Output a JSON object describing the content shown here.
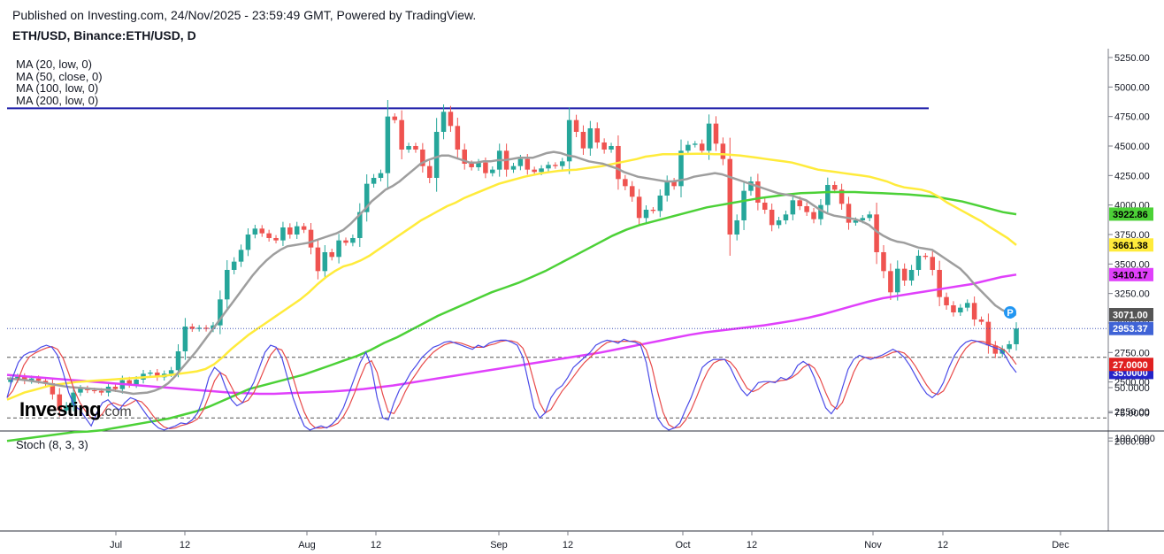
{
  "header": {
    "publish_line": "Published on Investing.com, 24/Nov/2025 - 23:59:49 GMT, Powered by TradingView.",
    "symbol_line": "ETH/USD, Binance:ETH/USD, D"
  },
  "logo": {
    "text": "Investing",
    "suffix": ".com"
  },
  "colors": {
    "up": "#26a69a",
    "down": "#ef5350",
    "ma20": "#9e9e9e",
    "ma50": "#ffeb3b",
    "ma100": "#4cd137",
    "ma200": "#e040fb",
    "resistance": "#1a1aa8",
    "stoch_k": "#4a4ae8",
    "stoch_d": "#e84a4a",
    "stoch_band": "#d9b8dd"
  },
  "chart_data": [
    {
      "type": "candlestick",
      "title": "ETH/USD, Binance:ETH/USD, D",
      "x_ticks": [
        "Jul",
        "12",
        "Aug",
        "12",
        "Sep",
        "12",
        "Oct",
        "12",
        "Nov",
        "12",
        "Dec"
      ],
      "y_ticks": [
        "5250.00",
        "5000.00",
        "4750.00",
        "4500.00",
        "4250.00",
        "4000.00",
        "3750.00",
        "3500.00",
        "3250.00",
        "3000.00",
        "2750.00",
        "2500.00",
        "2250.00",
        "2000.00"
      ],
      "ylim": [
        1900,
        5340
      ],
      "resistance_level": 4820,
      "current_price": 2953.37,
      "legend": [
        "MA (20, low, 0)",
        "MA (50, close, 0)",
        "MA (100, low, 0)",
        "MA (200, low, 0)"
      ],
      "closes": [
        2520,
        2545,
        2510,
        2530,
        2510,
        2490,
        2395,
        2260,
        2300,
        2410,
        2445,
        2430,
        2425,
        2410,
        2460,
        2440,
        2515,
        2480,
        2520,
        2570,
        2580,
        2540,
        2570,
        2600,
        2760,
        2970,
        2950,
        2960,
        2950,
        2980,
        3200,
        3450,
        3520,
        3620,
        3750,
        3800,
        3760,
        3720,
        3700,
        3810,
        3750,
        3820,
        3790,
        3640,
        3440,
        3600,
        3560,
        3700,
        3680,
        3720,
        3940,
        4180,
        4230,
        4270,
        4750,
        4720,
        4470,
        4500,
        4470,
        4330,
        4230,
        4620,
        4790,
        4670,
        4470,
        4350,
        4320,
        4360,
        4270,
        4300,
        4460,
        4300,
        4330,
        4390,
        4300,
        4280,
        4310,
        4340,
        4330,
        4370,
        4720,
        4620,
        4480,
        4650,
        4530,
        4470,
        4500,
        4220,
        4160,
        4070,
        3890,
        3960,
        3950,
        4080,
        4200,
        4160,
        4460,
        4510,
        4520,
        4460,
        4690,
        4520,
        4390,
        3750,
        3870,
        4120,
        4200,
        4020,
        3960,
        3830,
        3870,
        3920,
        4040,
        3990,
        3940,
        3880,
        4000,
        4170,
        4130,
        4010,
        3850,
        3870,
        3890,
        3920,
        3600,
        3440,
        3260,
        3460,
        3360,
        3450,
        3570,
        3560,
        3450,
        3220,
        3150,
        3090,
        3130,
        3170,
        3030,
        3010,
        2810,
        2740,
        2780,
        2820,
        2953
      ],
      "ma20": [
        2530,
        2525,
        2520,
        2513,
        2504,
        2495,
        2485,
        2475,
        2465,
        2456,
        2452,
        2448,
        2443,
        2439,
        2435,
        2430,
        2420,
        2410,
        2400,
        2405,
        2410,
        2425,
        2450,
        2490,
        2550,
        2620,
        2690,
        2760,
        2840,
        2920,
        3000,
        3080,
        3160,
        3240,
        3320,
        3400,
        3470,
        3530,
        3580,
        3620,
        3650,
        3660,
        3670,
        3680,
        3700,
        3720,
        3740,
        3760,
        3790,
        3840,
        3900,
        3960,
        4030,
        4080,
        4130,
        4160,
        4200,
        4250,
        4300,
        4350,
        4380,
        4400,
        4420,
        4420,
        4400,
        4380,
        4360,
        4360,
        4370,
        4370,
        4380,
        4380,
        4390,
        4400,
        4400,
        4400,
        4420,
        4440,
        4450,
        4440,
        4420,
        4410,
        4390,
        4370,
        4360,
        4350,
        4330,
        4310,
        4280,
        4260,
        4240,
        4230,
        4220,
        4210,
        4200,
        4200,
        4210,
        4220,
        4240,
        4250,
        4260,
        4270,
        4260,
        4240,
        4220,
        4200,
        4180,
        4160,
        4140,
        4120,
        4100,
        4090,
        4080,
        4060,
        4040,
        4000,
        3960,
        3930,
        3910,
        3900,
        3890,
        3880,
        3860,
        3830,
        3780,
        3740,
        3710,
        3690,
        3680,
        3660,
        3640,
        3630,
        3620,
        3580,
        3540,
        3500,
        3460,
        3400,
        3330,
        3270,
        3210,
        3150,
        3110,
        3080,
        3071
      ],
      "ma50": [
        2350,
        2380,
        2410,
        2430,
        2450,
        2470,
        2480,
        2490,
        2500,
        2505,
        2510,
        2515,
        2520,
        2525,
        2530,
        2535,
        2540,
        2545,
        2550,
        2560,
        2570,
        2580,
        2590,
        2610,
        2650,
        2710,
        2780,
        2840,
        2900,
        2950,
        3000,
        3050,
        3100,
        3150,
        3200,
        3260,
        3330,
        3390,
        3440,
        3480,
        3500,
        3530,
        3570,
        3620,
        3670,
        3720,
        3770,
        3820,
        3870,
        3910,
        3950,
        3990,
        4020,
        4060,
        4090,
        4120,
        4150,
        4180,
        4200,
        4220,
        4240,
        4255,
        4270,
        4280,
        4290,
        4295,
        4300,
        4310,
        4320,
        4330,
        4345,
        4360,
        4375,
        4390,
        4410,
        4420,
        4430,
        4430,
        4432,
        4433,
        4435,
        4435,
        4430,
        4430,
        4425,
        4420,
        4410,
        4400,
        4390,
        4380,
        4370,
        4360,
        4340,
        4320,
        4300,
        4290,
        4280,
        4270,
        4260,
        4250,
        4240,
        4220,
        4200,
        4170,
        4150,
        4140,
        4130,
        4110,
        4070,
        4020,
        3980,
        3940,
        3900,
        3860,
        3810,
        3765,
        3720,
        3661
      ],
      "ma100": [
        2000,
        2015,
        2030,
        2045,
        2060,
        2075,
        2080,
        2090,
        2110,
        2130,
        2150,
        2170,
        2190,
        2220,
        2250,
        2290,
        2340,
        2390,
        2440,
        2470,
        2500,
        2530,
        2560,
        2600,
        2640,
        2680,
        2720,
        2770,
        2830,
        2880,
        2940,
        3000,
        3060,
        3110,
        3160,
        3210,
        3260,
        3300,
        3340,
        3390,
        3440,
        3500,
        3560,
        3620,
        3680,
        3740,
        3790,
        3830,
        3860,
        3890,
        3920,
        3950,
        3980,
        4000,
        4020,
        4040,
        4060,
        4075,
        4090,
        4100,
        4105,
        4110,
        4110,
        4110,
        4105,
        4100,
        4095,
        4090,
        4080,
        4070,
        4050,
        4030,
        4000,
        3970,
        3940,
        3922
      ],
      "ma200": [
        2560,
        2550,
        2540,
        2530,
        2520,
        2510,
        2500,
        2490,
        2480,
        2470,
        2460,
        2450,
        2440,
        2430,
        2420,
        2410,
        2405,
        2400,
        2400,
        2405,
        2410,
        2415,
        2420,
        2430,
        2440,
        2455,
        2470,
        2490,
        2510,
        2530,
        2550,
        2570,
        2590,
        2610,
        2630,
        2650,
        2670,
        2690,
        2710,
        2730,
        2750,
        2775,
        2800,
        2825,
        2850,
        2875,
        2900,
        2920,
        2935,
        2950,
        2965,
        2980,
        3000,
        3020,
        3045,
        3075,
        3110,
        3145,
        3180,
        3210,
        3230,
        3250,
        3270,
        3290,
        3310,
        3330,
        3360,
        3390,
        3410
      ],
      "series_labels": {
        "ma20": "3071.00",
        "ma50": "3661.38",
        "ma100": "3922.86",
        "ma200": "3410.17",
        "price": "2953.37"
      },
      "price_badge": "P"
    },
    {
      "type": "line",
      "title": "Stoch (8, 3, 3)",
      "y_ticks": [
        "100.0000",
        "75.0000",
        "50.0000"
      ],
      "ylim": [
        0,
        105
      ],
      "band": [
        20,
        80
      ],
      "k": [
        60,
        40,
        25,
        18,
        15,
        14,
        10,
        8,
        10,
        18,
        35,
        55,
        68,
        72,
        80,
        88,
        75,
        65,
        62,
        68,
        72,
        65,
        60,
        62,
        70,
        78,
        85,
        90,
        92,
        90,
        88,
        85,
        86,
        82,
        75,
        60,
        40,
        30,
        35,
        50,
        62,
        68,
        65,
        55,
        45,
        30,
        15,
        8,
        10,
        20,
        40,
        60,
        75,
        88,
        92,
        90,
        88,
        90,
        86,
        80,
        70,
        55,
        40,
        25,
        15,
        30,
        60,
        80,
        82,
        65,
        52,
        45,
        35,
        28,
        20,
        15,
        10,
        8,
        5,
        4,
        6,
        8,
        10,
        12,
        8,
        10,
        6,
        4,
        3,
        3,
        5,
        8,
        20,
        45,
        70,
        80,
        75,
        60,
        52,
        48,
        40,
        30,
        25,
        20,
        15,
        8,
        5,
        3,
        4,
        6,
        2,
        4,
        5,
        8,
        25,
        55,
        80,
        88,
        92,
        90,
        85,
        72,
        60,
        45,
        30,
        25,
        22,
        22,
        22,
        30,
        42,
        52,
        58,
        52,
        45,
        44,
        44,
        45,
        40,
        42,
        38,
        28,
        24,
        28,
        40,
        55,
        70,
        76,
        68,
        50,
        32,
        22,
        18,
        20,
        22,
        20,
        18,
        15,
        12,
        15,
        20,
        28,
        38,
        48,
        56,
        60,
        55,
        45,
        30,
        18,
        10,
        5,
        3,
        4,
        6,
        8,
        10,
        12,
        18,
        28,
        35
      ]
    }
  ]
}
